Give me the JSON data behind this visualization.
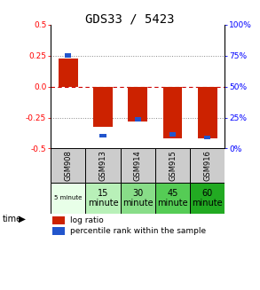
{
  "title": "GDS33 / 5423",
  "samples": [
    "GSM908",
    "GSM913",
    "GSM914",
    "GSM915",
    "GSM916"
  ],
  "time_labels": [
    "5 minute",
    "15\nminute",
    "30\nminute",
    "45\nminute",
    "60\nminute"
  ],
  "time_bg_colors": [
    "#e8ffe8",
    "#b8f0b8",
    "#88dd88",
    "#55cc55",
    "#22aa22"
  ],
  "log_ratios": [
    0.225,
    -0.325,
    -0.285,
    -0.42,
    -0.42
  ],
  "percentile_ranks": [
    0.75,
    0.105,
    0.235,
    0.115,
    0.09
  ],
  "ylim": [
    -0.5,
    0.5
  ],
  "yticks_left": [
    -0.5,
    -0.25,
    0.0,
    0.25,
    0.5
  ],
  "yticks_right": [
    0,
    25,
    50,
    75,
    100
  ],
  "bar_color": "#cc2200",
  "pct_color": "#2255cc",
  "zero_line_color": "#cc0000",
  "bar_width": 0.55,
  "pct_bar_width": 0.18
}
